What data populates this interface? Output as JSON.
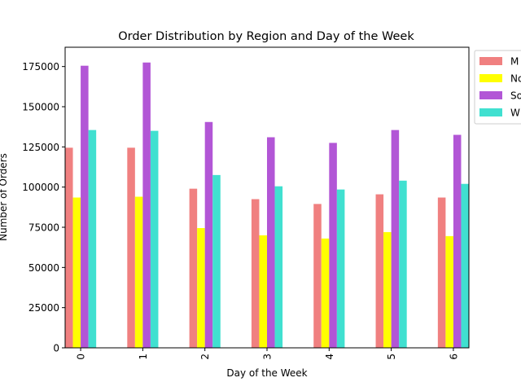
{
  "chart_data": {
    "type": "bar",
    "title": "Order Distribution by Region and Day of the Week",
    "xlabel": "Day of the Week",
    "ylabel": "Number of Orders",
    "categories": [
      "0",
      "1",
      "2",
      "3",
      "4",
      "5",
      "6"
    ],
    "ylim": [
      0,
      187000
    ],
    "yticks": [
      0,
      25000,
      50000,
      75000,
      100000,
      125000,
      150000,
      175000
    ],
    "ytick_labels": [
      "0",
      "25000",
      "50000",
      "75000",
      "100000",
      "125000",
      "150000",
      "175000"
    ],
    "grid": false,
    "legend_position": "outside-top-right",
    "series": [
      {
        "name": "M",
        "color": "#f08080",
        "values": [
          124500,
          124500,
          99000,
          92500,
          89500,
          95500,
          93500
        ]
      },
      {
        "name": "No",
        "color": "#ffff00",
        "values": [
          93500,
          94000,
          74500,
          70000,
          68000,
          72000,
          69500
        ]
      },
      {
        "name": "So",
        "color": "#b256d6",
        "values": [
          175500,
          177500,
          140500,
          131000,
          127500,
          135500,
          132500
        ]
      },
      {
        "name": "W",
        "color": "#40e0d0",
        "values": [
          135500,
          135000,
          107500,
          100500,
          98500,
          104000,
          102000
        ]
      }
    ]
  }
}
